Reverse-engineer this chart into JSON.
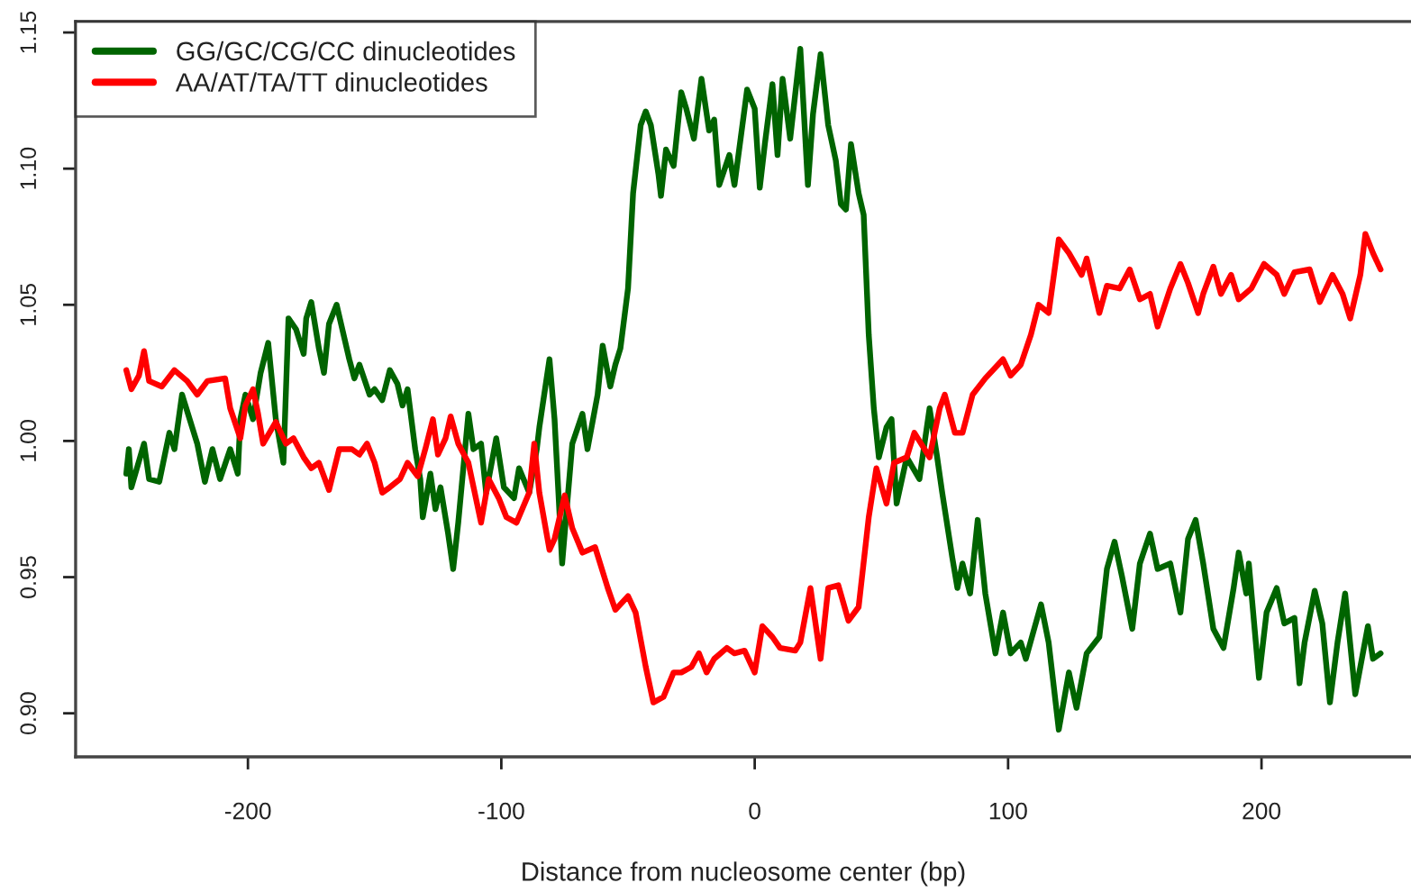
{
  "chart_data": {
    "type": "line",
    "xlabel": "Distance from nucleosome center (bp)",
    "xlim": [
      -268,
      259
    ],
    "ylim": [
      0.884,
      1.154
    ],
    "xticks": [
      -200,
      -100,
      0,
      100,
      200
    ],
    "yticks": [
      {
        "value": 0.9,
        "label": "0.90"
      },
      0.95,
      {
        "value": 1.0,
        "label": "1.00"
      },
      1.05,
      {
        "value": 1.1,
        "label": "1.10"
      },
      1.15
    ],
    "legend": "top left",
    "line_style": "solid",
    "grid": false,
    "series": [
      {
        "name": "GG/GC/CG/CC dinucleotides",
        "color": "#006400",
        "x": [
          -248,
          -247,
          -246,
          -241,
          -239,
          -235,
          -231,
          -229,
          -226,
          -223,
          -220,
          -217,
          -214,
          -211,
          -207,
          -204,
          -203,
          -201,
          -198,
          -195,
          -192,
          -189,
          -186,
          -184,
          -181,
          -178,
          -177,
          -175,
          -172,
          -170,
          -168,
          -165,
          -160,
          -158,
          -156,
          -152,
          -150,
          -147,
          -144,
          -141,
          -139,
          -137,
          -134,
          -132,
          -131,
          -128,
          -126,
          -124,
          -121,
          -119,
          -117,
          -113,
          -111,
          -108,
          -106,
          -102,
          -99,
          -95,
          -93,
          -89,
          -86,
          -85,
          -81,
          -79,
          -76,
          -74,
          -72,
          -68,
          -66,
          -62,
          -60,
          -57,
          -55,
          -53,
          -50,
          -48,
          -45,
          -43,
          -41,
          -38,
          -37,
          -35,
          -32,
          -29,
          -27,
          -24,
          -21,
          -18,
          -16,
          -14,
          -10,
          -8,
          -3,
          0,
          2,
          4,
          7,
          9,
          11,
          14,
          18,
          21,
          23,
          26,
          29,
          32,
          34,
          36,
          38,
          41,
          43,
          45,
          47,
          49,
          52,
          54,
          56,
          60,
          65,
          69,
          72,
          74,
          78,
          80,
          82,
          85,
          88,
          91,
          95,
          98,
          101,
          105,
          107,
          113,
          116,
          120,
          124,
          127,
          131,
          136,
          139,
          142,
          145,
          149,
          152,
          156,
          159,
          164,
          168,
          171,
          174,
          177,
          181,
          185,
          189,
          191,
          194,
          195,
          199,
          202,
          206,
          209,
          213,
          215,
          217,
          221,
          224,
          227,
          230,
          233,
          237,
          240,
          242,
          244,
          247
        ],
        "values": [
          0.988,
          0.997,
          0.983,
          0.999,
          0.986,
          0.985,
          1.003,
          0.997,
          1.017,
          1.008,
          0.999,
          0.985,
          0.997,
          0.986,
          0.997,
          0.988,
          1.008,
          1.017,
          1.008,
          1.025,
          1.036,
          1.008,
          0.992,
          1.045,
          1.041,
          1.032,
          1.045,
          1.051,
          1.034,
          1.025,
          1.043,
          1.05,
          1.03,
          1.023,
          1.028,
          1.017,
          1.019,
          1.015,
          1.026,
          1.021,
          1.013,
          1.019,
          0.997,
          0.986,
          0.972,
          0.988,
          0.975,
          0.983,
          0.966,
          0.953,
          0.97,
          1.01,
          0.997,
          0.999,
          0.981,
          1.001,
          0.983,
          0.979,
          0.99,
          0.981,
          0.997,
          1.005,
          1.03,
          1.008,
          0.955,
          0.977,
          0.999,
          1.01,
          0.997,
          1.017,
          1.035,
          1.02,
          1.028,
          1.034,
          1.056,
          1.091,
          1.116,
          1.121,
          1.116,
          1.098,
          1.09,
          1.107,
          1.101,
          1.128,
          1.122,
          1.111,
          1.133,
          1.114,
          1.118,
          1.094,
          1.105,
          1.094,
          1.129,
          1.122,
          1.093,
          1.109,
          1.131,
          1.105,
          1.133,
          1.111,
          1.144,
          1.094,
          1.12,
          1.142,
          1.116,
          1.103,
          1.087,
          1.085,
          1.109,
          1.091,
          1.083,
          1.039,
          1.012,
          0.994,
          1.005,
          1.008,
          0.977,
          0.994,
          0.986,
          1.012,
          0.994,
          0.981,
          0.957,
          0.946,
          0.955,
          0.944,
          0.971,
          0.944,
          0.922,
          0.937,
          0.922,
          0.926,
          0.92,
          0.94,
          0.926,
          0.894,
          0.915,
          0.902,
          0.922,
          0.928,
          0.953,
          0.963,
          0.95,
          0.931,
          0.955,
          0.966,
          0.953,
          0.955,
          0.937,
          0.964,
          0.971,
          0.955,
          0.931,
          0.924,
          0.946,
          0.959,
          0.944,
          0.955,
          0.913,
          0.937,
          0.946,
          0.933,
          0.935,
          0.911,
          0.926,
          0.945,
          0.933,
          0.904,
          0.926,
          0.944,
          0.907,
          0.922,
          0.932,
          0.92,
          0.922
        ]
      },
      {
        "name": "AA/AT/TA/TT dinucleotides",
        "color": "#ff0000",
        "x": [
          -248,
          -246,
          -243,
          -241,
          -239,
          -234,
          -229,
          -224,
          -220,
          -216,
          -209,
          -207,
          -203,
          -201,
          -198,
          -196,
          -194,
          -189,
          -185,
          -182,
          -178,
          -175,
          -172,
          -168,
          -164,
          -159,
          -156,
          -153,
          -150,
          -147,
          -144,
          -140,
          -137,
          -133,
          -130,
          -127,
          -125,
          -122,
          -120,
          -117,
          -113,
          -108,
          -105,
          -101,
          -98,
          -94,
          -89,
          -87,
          -85,
          -81,
          -79,
          -75,
          -72,
          -68,
          -63,
          -58,
          -55,
          -50,
          -47,
          -43,
          -40,
          -36,
          -32,
          -29,
          -25,
          -22,
          -19,
          -16,
          -11,
          -8,
          -4,
          0,
          3,
          7,
          10,
          16,
          18,
          22,
          26,
          29,
          33,
          37,
          41,
          45,
          48,
          52,
          55,
          60,
          63,
          69,
          73,
          75,
          79,
          82,
          86,
          91,
          98,
          101,
          105,
          109,
          112,
          116,
          120,
          124,
          129,
          131,
          136,
          139,
          144,
          148,
          152,
          156,
          159,
          164,
          168,
          171,
          175,
          177,
          181,
          184,
          188,
          191,
          196,
          201,
          206,
          209,
          213,
          219,
          223,
          228,
          232,
          235,
          239,
          241,
          244,
          247
        ],
        "values": [
          1.026,
          1.019,
          1.024,
          1.033,
          1.022,
          1.02,
          1.026,
          1.022,
          1.017,
          1.022,
          1.023,
          1.012,
          1.001,
          1.013,
          1.019,
          1.01,
          0.999,
          1.007,
          0.999,
          1.001,
          0.994,
          0.99,
          0.992,
          0.982,
          0.997,
          0.997,
          0.995,
          0.999,
          0.992,
          0.981,
          0.983,
          0.986,
          0.992,
          0.987,
          0.997,
          1.008,
          0.995,
          1.001,
          1.009,
          0.999,
          0.992,
          0.97,
          0.986,
          0.979,
          0.972,
          0.97,
          0.981,
          0.999,
          0.981,
          0.96,
          0.964,
          0.98,
          0.968,
          0.959,
          0.961,
          0.946,
          0.938,
          0.943,
          0.937,
          0.917,
          0.904,
          0.906,
          0.915,
          0.915,
          0.917,
          0.922,
          0.915,
          0.92,
          0.924,
          0.922,
          0.923,
          0.915,
          0.932,
          0.928,
          0.924,
          0.923,
          0.926,
          0.946,
          0.92,
          0.946,
          0.947,
          0.934,
          0.939,
          0.972,
          0.99,
          0.977,
          0.992,
          0.994,
          1.003,
          0.994,
          1.012,
          1.017,
          1.003,
          1.003,
          1.017,
          1.023,
          1.03,
          1.024,
          1.028,
          1.039,
          1.05,
          1.047,
          1.074,
          1.069,
          1.061,
          1.067,
          1.047,
          1.057,
          1.056,
          1.063,
          1.052,
          1.054,
          1.042,
          1.056,
          1.065,
          1.058,
          1.047,
          1.054,
          1.064,
          1.054,
          1.061,
          1.052,
          1.056,
          1.065,
          1.061,
          1.054,
          1.062,
          1.063,
          1.051,
          1.061,
          1.054,
          1.045,
          1.061,
          1.076,
          1.069,
          1.063
        ]
      }
    ]
  }
}
